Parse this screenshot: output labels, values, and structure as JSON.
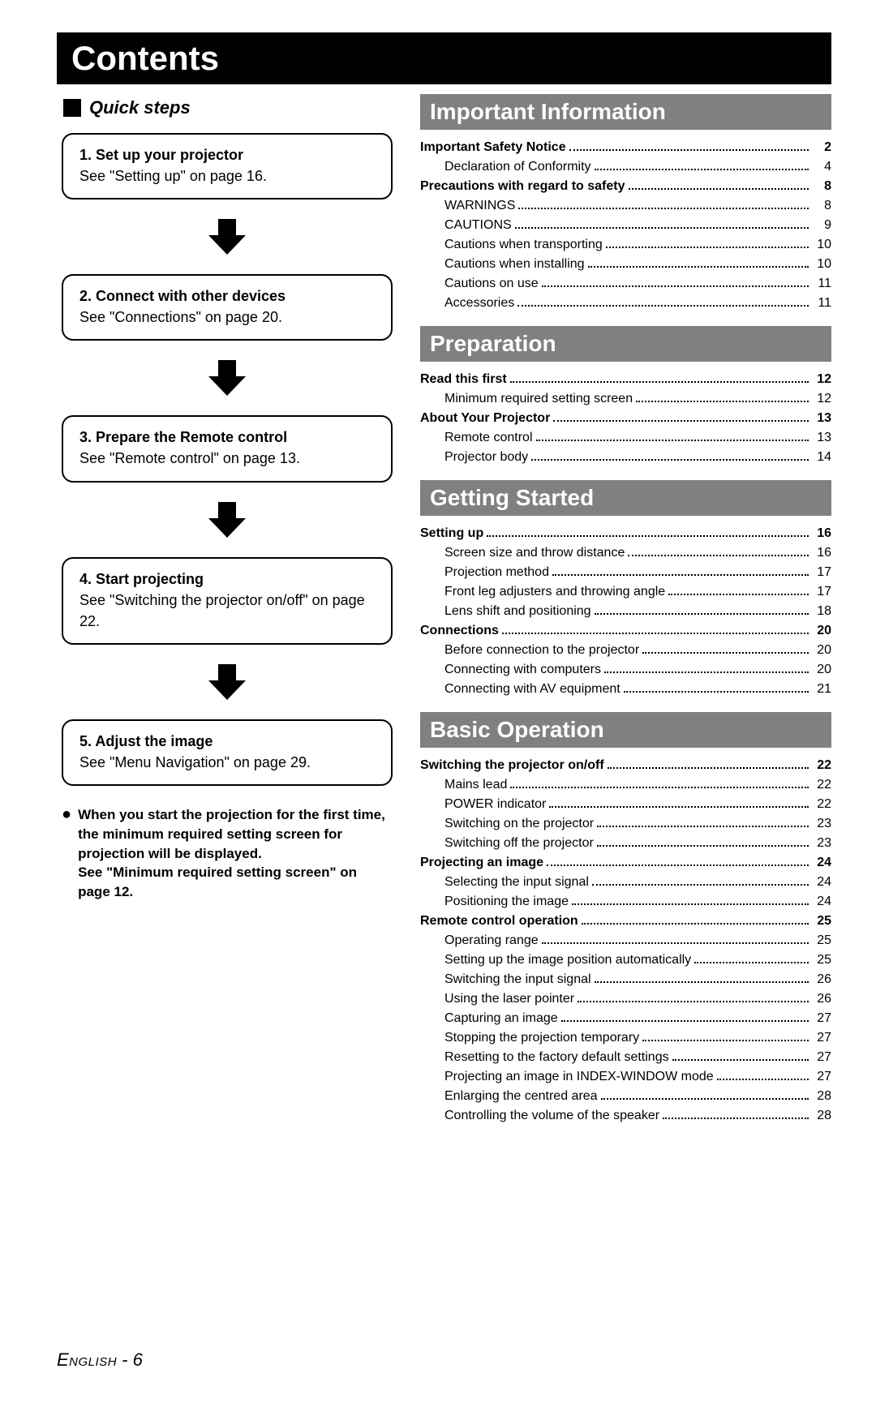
{
  "title": "Contents",
  "quick_steps": {
    "heading": "Quick steps",
    "steps": [
      {
        "title": "1. Set up your projector",
        "sub": "See \"Setting up\" on page 16."
      },
      {
        "title": "2. Connect with other devices",
        "sub": "See \"Connections\" on page 20."
      },
      {
        "title": "3. Prepare the Remote control",
        "sub": "See \"Remote control\" on page 13."
      },
      {
        "title": "4. Start projecting",
        "sub": "See \"Switching the projector on/off\" on page 22."
      },
      {
        "title": "5. Adjust the image",
        "sub": "See \"Menu Navigation\" on page 29."
      }
    ],
    "note": "When you start the projection for the first time, the minimum required setting screen for projection will be displayed.\nSee \"Minimum required setting screen\" on page 12."
  },
  "sections": [
    {
      "heading": "Important Information",
      "items": [
        {
          "label": "Important Safety Notice",
          "page": "2",
          "bold": true
        },
        {
          "label": "Declaration of Conformity",
          "page": "4",
          "bold": false
        },
        {
          "label": "Precautions with regard to safety",
          "page": "8",
          "bold": true
        },
        {
          "label": "WARNINGS",
          "page": "8",
          "bold": false
        },
        {
          "label": "CAUTIONS",
          "page": "9",
          "bold": false
        },
        {
          "label": "Cautions when transporting",
          "page": "10",
          "bold": false
        },
        {
          "label": "Cautions when installing",
          "page": "10",
          "bold": false
        },
        {
          "label": "Cautions on use",
          "page": "11",
          "bold": false
        },
        {
          "label": "Accessories",
          "page": "11",
          "bold": false
        }
      ]
    },
    {
      "heading": "Preparation",
      "items": [
        {
          "label": "Read this first",
          "page": "12",
          "bold": true
        },
        {
          "label": "Minimum required setting screen",
          "page": "12",
          "bold": false
        },
        {
          "label": "About Your Projector",
          "page": "13",
          "bold": true
        },
        {
          "label": "Remote control",
          "page": "13",
          "bold": false
        },
        {
          "label": "Projector body",
          "page": "14",
          "bold": false
        }
      ]
    },
    {
      "heading": "Getting Started",
      "items": [
        {
          "label": "Setting up",
          "page": "16",
          "bold": true
        },
        {
          "label": "Screen size and throw distance",
          "page": "16",
          "bold": false
        },
        {
          "label": "Projection method",
          "page": "17",
          "bold": false
        },
        {
          "label": "Front leg adjusters and throwing angle",
          "page": "17",
          "bold": false
        },
        {
          "label": "Lens shift and positioning",
          "page": "18",
          "bold": false
        },
        {
          "label": "Connections",
          "page": "20",
          "bold": true
        },
        {
          "label": "Before connection to the projector",
          "page": "20",
          "bold": false
        },
        {
          "label": "Connecting with computers",
          "page": "20",
          "bold": false
        },
        {
          "label": "Connecting with AV equipment",
          "page": "21",
          "bold": false
        }
      ]
    },
    {
      "heading": "Basic Operation",
      "items": [
        {
          "label": "Switching the projector on/off",
          "page": "22",
          "bold": true
        },
        {
          "label": "Mains lead",
          "page": "22",
          "bold": false
        },
        {
          "label": "POWER indicator",
          "page": "22",
          "bold": false
        },
        {
          "label": "Switching on the projector",
          "page": "23",
          "bold": false
        },
        {
          "label": "Switching off the projector",
          "page": "23",
          "bold": false
        },
        {
          "label": "Projecting an image",
          "page": "24",
          "bold": true
        },
        {
          "label": "Selecting the input signal",
          "page": "24",
          "bold": false
        },
        {
          "label": "Positioning the image",
          "page": "24",
          "bold": false
        },
        {
          "label": "Remote control operation",
          "page": "25",
          "bold": true
        },
        {
          "label": "Operating range",
          "page": "25",
          "bold": false
        },
        {
          "label": "Setting up the image position automatically",
          "page": "25",
          "bold": false
        },
        {
          "label": "Switching the input signal",
          "page": "26",
          "bold": false
        },
        {
          "label": "Using the laser pointer",
          "page": "26",
          "bold": false
        },
        {
          "label": "Capturing an image",
          "page": "27",
          "bold": false
        },
        {
          "label": "Stopping the projection temporary",
          "page": "27",
          "bold": false
        },
        {
          "label": "Resetting to the factory default settings",
          "page": "27",
          "bold": false
        },
        {
          "label": "Projecting an image in INDEX-WINDOW mode",
          "page": "27",
          "bold": false
        },
        {
          "label": "Enlarging the centred area",
          "page": "28",
          "bold": false
        },
        {
          "label": "Controlling the volume of the speaker",
          "page": "28",
          "bold": false
        }
      ]
    }
  ],
  "footer": {
    "lang": "English",
    "sep": " - ",
    "page": "6"
  },
  "arrow_svg": {
    "fill": "#000000",
    "width": 54,
    "height": 54
  }
}
